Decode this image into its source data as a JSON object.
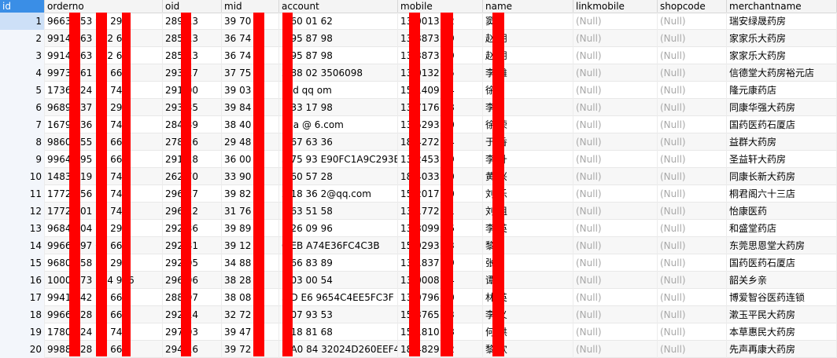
{
  "columns": [
    "id",
    "orderno",
    "oid",
    "mid",
    "account",
    "mobile",
    "name",
    "linkmobile",
    "shopcode",
    "merchantname"
  ],
  "rows": [
    {
      "id": "1",
      "orderno": "9663  153  90  29",
      "oid": "289  13",
      "mid": "39  70",
      "account": "1  60  01  62",
      "mobile": "13  0013  62",
      "name": "窦",
      "linkmobile": "(Null)",
      "shopcode": "(Null)",
      "merchantname": "瑞安绿晟药房"
    },
    {
      "id": "2",
      "orderno": "9914  063  182  66",
      "oid": "285  13",
      "mid": "36  74",
      "account": "1  95  87  98",
      "mobile": "13  3873  39",
      "name": "赵  朋",
      "linkmobile": "(Null)",
      "shopcode": "(Null)",
      "merchantname": "家家乐大药房"
    },
    {
      "id": "3",
      "orderno": "9914  063  182  66",
      "oid": "285  13",
      "mid": "36  74",
      "account": "1  95  87  98",
      "mobile": "13  3873  39",
      "name": "赵  朋",
      "linkmobile": "(Null)",
      "shopcode": "(Null)",
      "merchantname": "家家乐大药房"
    },
    {
      "id": "4",
      "orderno": "9973  161  29  66",
      "oid": "293  17",
      "mid": "37  75",
      "account": "2  88  02  3506098",
      "mobile": "13  0132  15",
      "name": "李  雄",
      "linkmobile": "(Null)",
      "shopcode": "(Null)",
      "merchantname": "信德堂大药房裕元店"
    },
    {
      "id": "5",
      "orderno": "1736  824  59  74",
      "oid": "291  00",
      "mid": "39  03",
      "account": "l  yd  qq  om",
      "mobile": "15  1409  24",
      "name": "徐",
      "linkmobile": "(Null)",
      "shopcode": "(Null)",
      "merchantname": "隆元康药店"
    },
    {
      "id": "6",
      "orderno": "9689  537  88  29",
      "oid": "293  35",
      "mid": "39  84",
      "account": "1  33  17  98",
      "mobile": "13  7176  98",
      "name": "李",
      "linkmobile": "(Null)",
      "shopcode": "(Null)",
      "merchantname": "同康华强大药房"
    },
    {
      "id": "7",
      "orderno": "1679  636  52  74",
      "oid": "284  39",
      "mid": "38  40",
      "account": "l  0a  @  6.com",
      "mobile": "13  5293  00",
      "name": "徐  荣",
      "linkmobile": "(Null)",
      "shopcode": "(Null)",
      "merchantname": "国药医药石厦店"
    },
    {
      "id": "8",
      "orderno": "9860  355  36  66",
      "oid": "278  26",
      "mid": "29  48",
      "account": "1  67  63  36",
      "mobile": "18  4272  44",
      "name": "于  香",
      "linkmobile": "(Null)",
      "shopcode": "(Null)",
      "merchantname": "益群大药房"
    },
    {
      "id": "9",
      "orderno": "9964  095  70  66",
      "oid": "291  18",
      "mid": "36  00",
      "account": "5  75  93  E90FC1A9C293E",
      "mobile": "13  2453  39",
      "name": "李  升",
      "linkmobile": "(Null)",
      "shopcode": "(Null)",
      "merchantname": "圣益轩大药房"
    },
    {
      "id": "10",
      "orderno": "1483  219  15  74",
      "oid": "262  70",
      "mid": "33  90",
      "account": "1  60  57  28",
      "mobile": "18  4033  80",
      "name": "黄  兴",
      "linkmobile": "(Null)",
      "shopcode": "(Null)",
      "merchantname": "同康长新大药房"
    },
    {
      "id": "11",
      "orderno": "1772  556  31  74",
      "oid": "296  27",
      "mid": "39  82",
      "account": "2  18  36  2@qq.com",
      "mobile": "15  2017  60",
      "name": "刘  乐",
      "linkmobile": "(Null)",
      "shopcode": "(Null)",
      "merchantname": "桐君阁六十三店"
    },
    {
      "id": "12",
      "orderno": "1772  501  33  74",
      "oid": "296  12",
      "mid": "31  76",
      "account": "1  63  51  58",
      "mobile": "13  1772  01",
      "name": "刘  姐",
      "linkmobile": "(Null)",
      "shopcode": "(Null)",
      "merchantname": "怡康医药"
    },
    {
      "id": "13",
      "orderno": "9684  004  14  29",
      "oid": "292  36",
      "mid": "39  89",
      "account": "1  26  09  96",
      "mobile": "13  3099  96",
      "name": "李  英",
      "linkmobile": "(Null)",
      "shopcode": "(Null)",
      "merchantname": "和盛堂药店"
    },
    {
      "id": "14",
      "orderno": "9966  297  00  66",
      "oid": "292  31",
      "mid": "39  12",
      "account": "0  EB  A74E36FC4C3B",
      "mobile": "15  9293  63",
      "name": "黎",
      "linkmobile": "(Null)",
      "shopcode": "(Null)",
      "merchantname": "东莞思恩堂大药房"
    },
    {
      "id": "15",
      "orderno": "9680  558  82  29",
      "oid": "292  05",
      "mid": "34  88",
      "account": "1  66  83  89",
      "mobile": "13  1837  89",
      "name": "张",
      "linkmobile": "(Null)",
      "shopcode": "(Null)",
      "merchantname": "国药医药石厦店"
    },
    {
      "id": "16",
      "orderno": "1000  873  764  966",
      "oid": "296  96",
      "mid": "38  28",
      "account": "1  03  00  54",
      "mobile": "13  0008  54",
      "name": "谭",
      "linkmobile": "(Null)",
      "shopcode": "(Null)",
      "merchantname": "韶关乡亲"
    },
    {
      "id": "17",
      "orderno": "9941  042  69  66",
      "oid": "288  97",
      "mid": "38  08",
      "account": "3  D  E6  9654C4EE5FC3F",
      "mobile": "13  9796  00",
      "name": "林  英",
      "linkmobile": "(Null)",
      "shopcode": "(Null)",
      "merchantname": "博爱智谷医药连锁"
    },
    {
      "id": "18",
      "orderno": "9966  728  64  66",
      "oid": "292  14",
      "mid": "32  72",
      "account": "1  07  93  53",
      "mobile": "15  3765  33",
      "name": "李  义",
      "linkmobile": "(Null)",
      "shopcode": "(Null)",
      "merchantname": "漱玉平民大药房"
    },
    {
      "id": "19",
      "orderno": "1780  424  53  74",
      "oid": "297  03",
      "mid": "39  47",
      "account": "1  18  81  68",
      "mobile": "15  1810  68",
      "name": "何  洪",
      "linkmobile": "(Null)",
      "shopcode": "(Null)",
      "merchantname": "本草惠民大药房"
    },
    {
      "id": "20",
      "orderno": "9988  228  26  66",
      "oid": "294  16",
      "mid": "39  72",
      "account": "3  A0  84  32024D260EEF4",
      "mobile": "18  4829  02",
      "name": "黎  欢",
      "linkmobile": "(Null)",
      "shopcode": "(Null)",
      "merchantname": "先声再康大药房"
    }
  ],
  "colors": {
    "redaction": "#ff0000",
    "selected_header": "#3a8ee6",
    "null_text": "#a8a8a8"
  }
}
